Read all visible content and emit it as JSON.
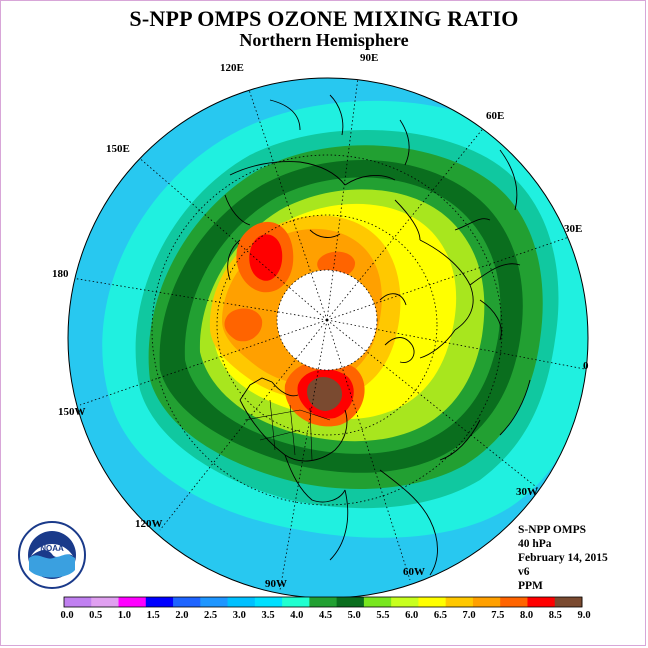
{
  "title": "S-NPP OMPS OZONE MIXING RATIO",
  "subtitle": "Northern Hemisphere",
  "longitude_labels": {
    "e120": "120E",
    "e90": "90E",
    "e60": "60E",
    "e30": "30E",
    "e150": "150E",
    "e180": "180",
    "e0": "0",
    "w150": "150W",
    "w120": "120W",
    "w90": "90W",
    "w60": "60W",
    "w30": "30W"
  },
  "info": {
    "instrument": "S-NPP OMPS",
    "level": "40 hPa",
    "date": "February 14, 2015",
    "version": "v6",
    "units": "PPM"
  },
  "logo_text": "NOAA",
  "colorbar": {
    "ticks": [
      "0.0",
      "0.5",
      "1.0",
      "1.5",
      "2.0",
      "2.5",
      "3.0",
      "3.5",
      "4.0",
      "4.5",
      "5.0",
      "5.5",
      "6.0",
      "6.5",
      "7.0",
      "7.5",
      "8.0",
      "8.5",
      "9.0"
    ],
    "colors": [
      "#c080f0",
      "#e0a0f0",
      "#ff00ff",
      "#0000ff",
      "#1e64ff",
      "#1e96ff",
      "#00c0ff",
      "#00e0ff",
      "#20ffd0",
      "#22a032",
      "#0a6e1e",
      "#78e61e",
      "#c8ff1e",
      "#ffff00",
      "#ffc800",
      "#ffa000",
      "#ff6400",
      "#ff0000",
      "#7a4a30"
    ]
  },
  "map_colors": {
    "water": "#28c8f0",
    "ring_cyan": "#20f0e0",
    "ring_teal": "#10c8a0",
    "ring_green": "#22a032",
    "ring_darkgreen": "#0a6e1e",
    "yellowgreen": "#a8e61e",
    "yellow": "#ffff00",
    "gold": "#ffc800",
    "orange": "#ffa000",
    "redorange": "#ff6400",
    "red": "#ff0000",
    "brown": "#7a4a30",
    "polar_night": "#ffffff"
  }
}
